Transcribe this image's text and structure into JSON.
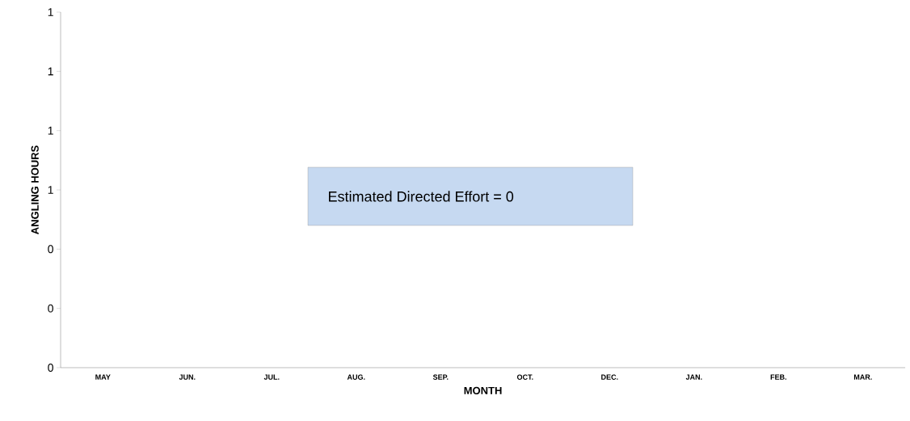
{
  "chart_data": {
    "type": "bar",
    "xlabel": "MONTH",
    "ylabel": "ANGLING HOURS",
    "categories": [
      "MAY",
      "JUN.",
      "JUL.",
      "AUG.",
      "SEP.",
      "OCT.",
      "DEC.",
      "JAN.",
      "FEB.",
      "MAR."
    ],
    "values": [
      0,
      0,
      0,
      0,
      0,
      0,
      0,
      0,
      0,
      0
    ],
    "ylim": [
      0,
      1.2
    ],
    "yticks": [
      0,
      {
        "value": 0.2,
        "label": "0"
      },
      {
        "value": 0.4,
        "label": "0"
      },
      {
        "value": 0.6,
        "label": "1"
      },
      {
        "value": 0.8,
        "label": "1"
      },
      {
        "value": 1.0,
        "label": "1"
      },
      {
        "value": 1.2,
        "label": "1"
      }
    ],
    "grid": false,
    "annotations": [
      "Estimated Directed Effort = 0"
    ]
  }
}
